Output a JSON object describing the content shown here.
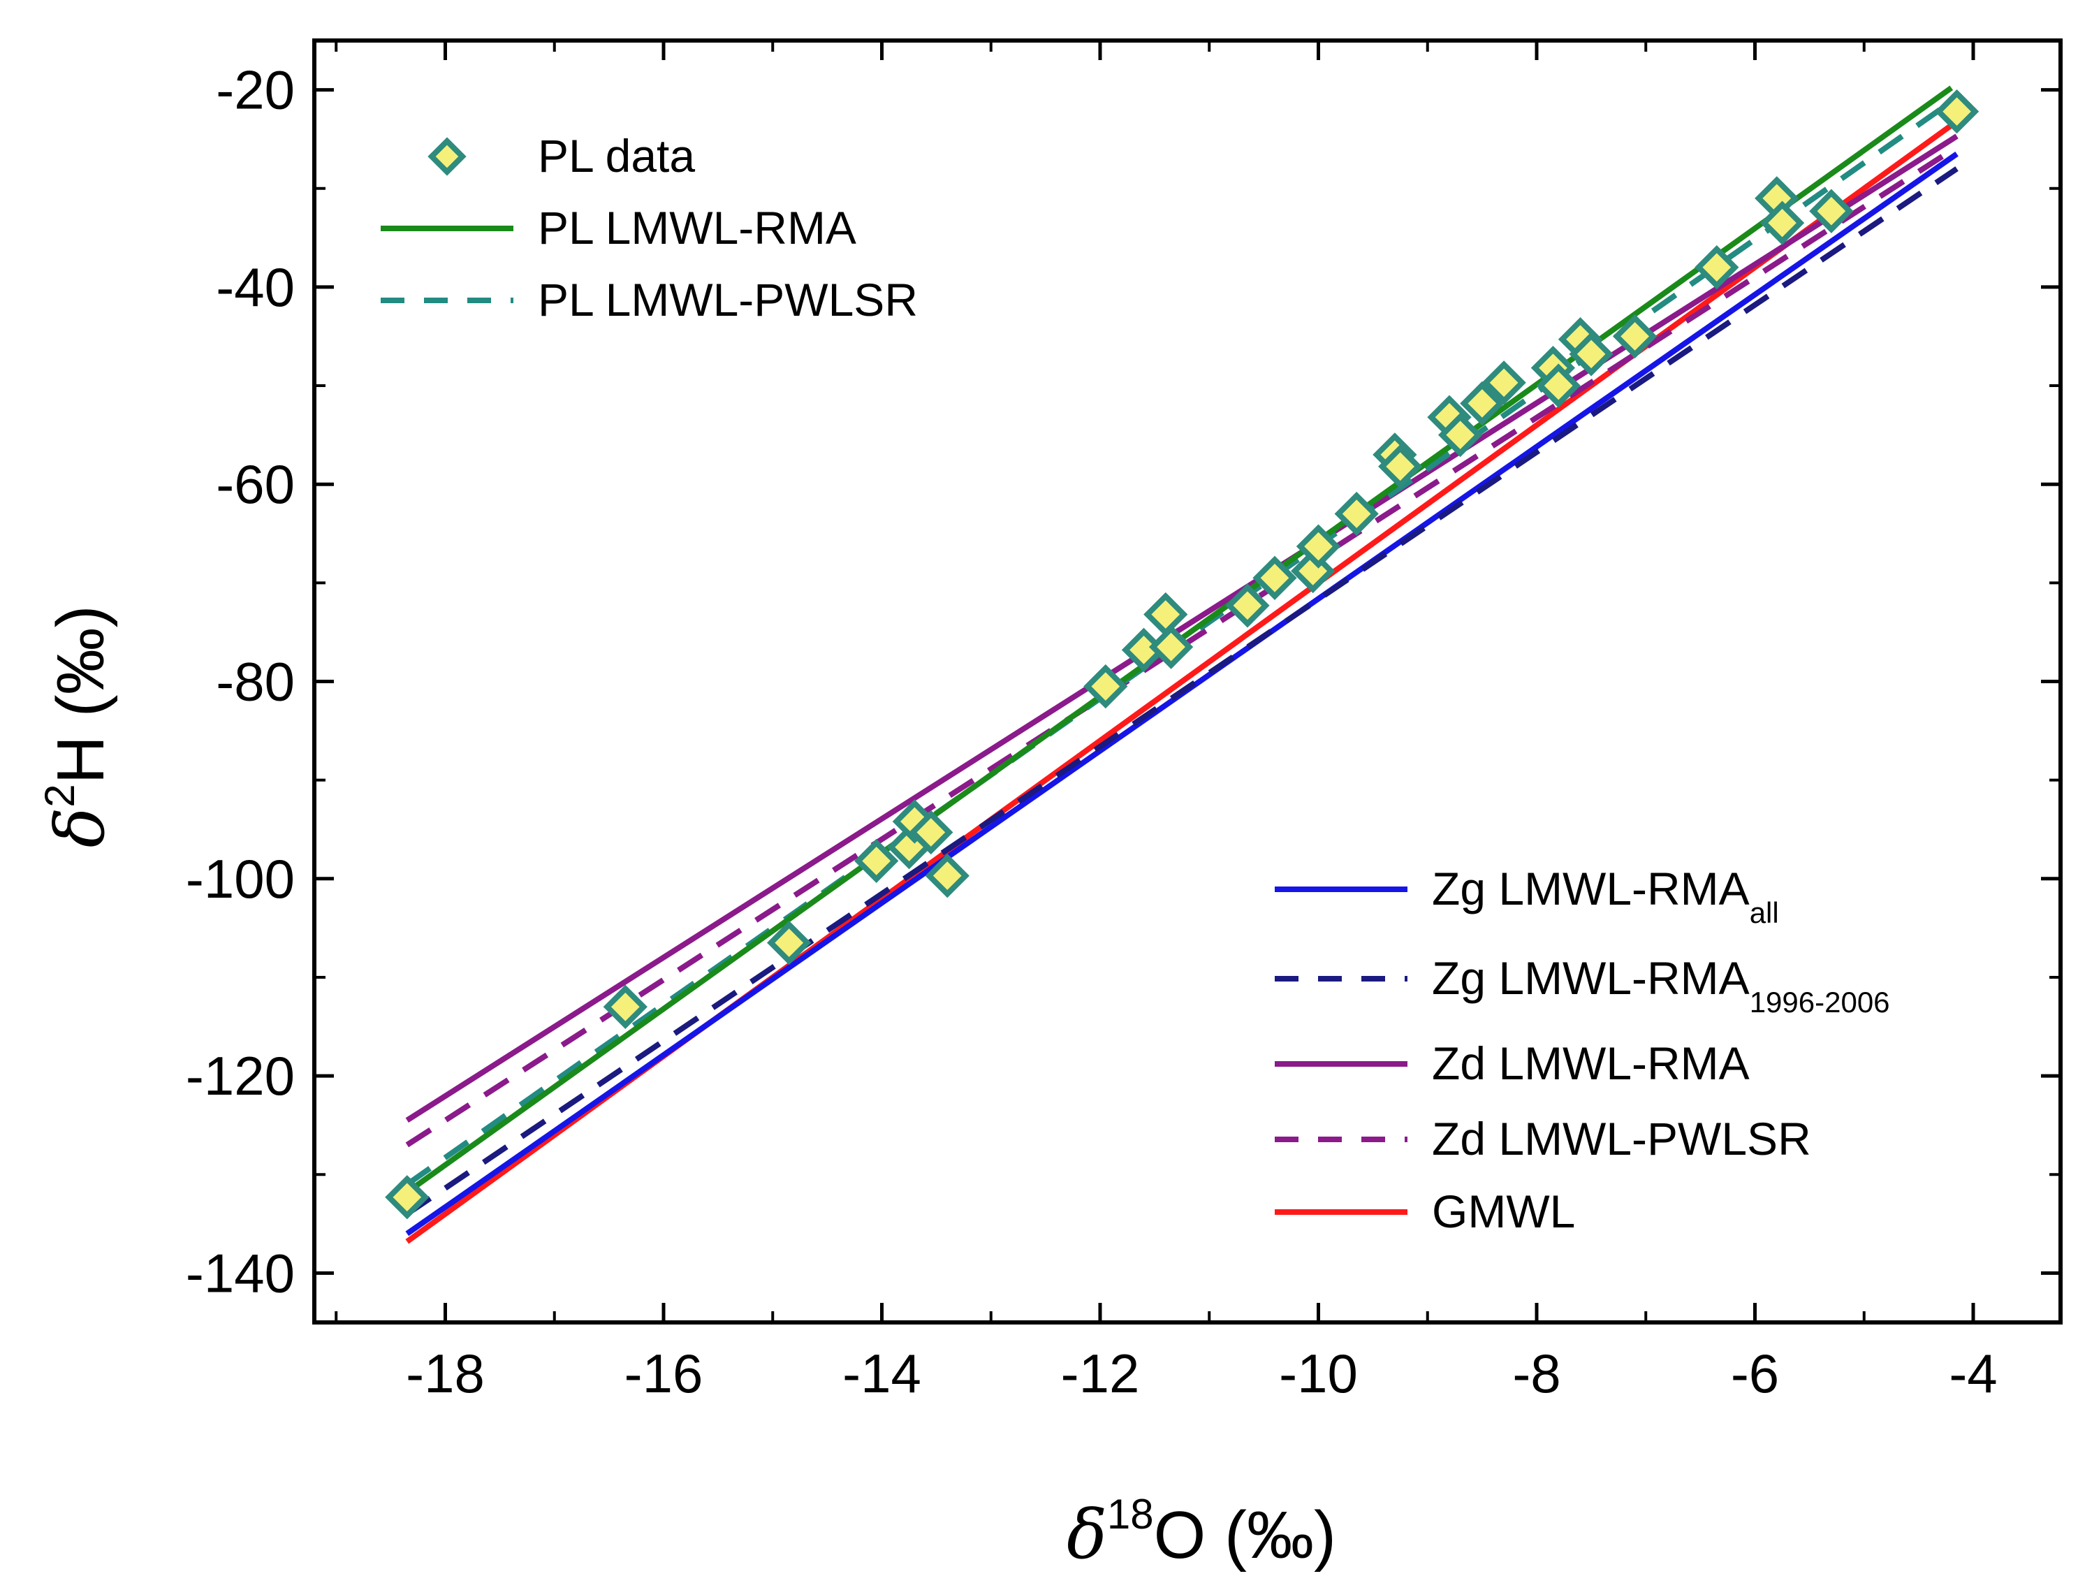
{
  "chart_data": {
    "type": "scatter",
    "title": "",
    "xlabel": {
      "symbol": "δ",
      "sup": "18",
      "text": "O (‰)"
    },
    "ylabel": {
      "symbol": "δ",
      "sup": "2",
      "text": "H (‰)"
    },
    "xlim": [
      -19.2,
      -3.2
    ],
    "ylim": [
      -145,
      -15
    ],
    "xticks": [
      -18,
      -16,
      -14,
      -12,
      -10,
      -8,
      -6,
      -4
    ],
    "yticks": [
      -20,
      -40,
      -60,
      -80,
      -100,
      -120,
      -140
    ],
    "xticks_minor": [
      -19,
      -17,
      -15,
      -13,
      -11,
      -9,
      -7,
      -5
    ],
    "yticks_minor": [
      -30,
      -50,
      -70,
      -90,
      -110,
      -130
    ],
    "grid": false,
    "colors": {
      "pl_data_fill": "#f5f07a",
      "pl_data_edge": "#2e8b7d",
      "pl_rma": "#1a8a1a",
      "pl_pwlsr": "#228b82",
      "zg_all": "#1515e8",
      "zg_1996": "#1a1a80",
      "zd_rma": "#8b1a8b",
      "zd_pwlsr": "#8b1a8b",
      "gmwl": "#ff1a1a"
    },
    "points": [
      [
        -18.35,
        -132.3
      ],
      [
        -16.35,
        -113.0
      ],
      [
        -14.85,
        -106.5
      ],
      [
        -14.05,
        -98.2
      ],
      [
        -13.75,
        -96.8
      ],
      [
        -13.7,
        -94.2
      ],
      [
        -13.55,
        -95.3
      ],
      [
        -13.4,
        -99.7
      ],
      [
        -11.95,
        -80.5
      ],
      [
        -11.6,
        -76.8
      ],
      [
        -11.4,
        -73.2
      ],
      [
        -11.35,
        -76.5
      ],
      [
        -10.65,
        -72.3
      ],
      [
        -10.4,
        -69.5
      ],
      [
        -10.05,
        -68.8
      ],
      [
        -10.0,
        -66.3
      ],
      [
        -9.65,
        -63.0
      ],
      [
        -9.3,
        -57.0
      ],
      [
        -9.25,
        -58.2
      ],
      [
        -8.8,
        -53.2
      ],
      [
        -8.7,
        -55.0
      ],
      [
        -8.5,
        -51.8
      ],
      [
        -8.3,
        -49.7
      ],
      [
        -7.85,
        -48.2
      ],
      [
        -7.8,
        -50.0
      ],
      [
        -7.6,
        -45.3
      ],
      [
        -7.5,
        -46.8
      ],
      [
        -7.1,
        -45.0
      ],
      [
        -6.35,
        -38.0
      ],
      [
        -5.8,
        -31.0
      ],
      [
        -5.75,
        -33.5
      ],
      [
        -5.3,
        -32.3
      ],
      [
        -4.15,
        -22.2
      ]
    ],
    "series": [
      {
        "name": "PL data",
        "kind": "markers",
        "color_key": "pl_data_edge"
      },
      {
        "name": "PL LMWL-RMA",
        "kind": "line",
        "dash": "solid",
        "color_key": "pl_rma",
        "x": [
          -18.35,
          -4.2
        ],
        "y": [
          -131.8,
          -19.8
        ]
      },
      {
        "name": "PL LMWL-PWLSR",
        "kind": "line",
        "dash": "dash",
        "color_key": "pl_pwlsr",
        "x": [
          -18.35,
          -4.2
        ],
        "y": [
          -131.0,
          -21.2
        ]
      },
      {
        "name": "Zg LMWL-RMA",
        "sub": "all",
        "kind": "line",
        "dash": "solid",
        "color_key": "zg_all",
        "x": [
          -18.35,
          -4.15
        ],
        "y": [
          -136.0,
          -26.5
        ]
      },
      {
        "name": "Zg LMWL-RMA",
        "sub": "1996-2006",
        "kind": "line",
        "dash": "dash",
        "color_key": "zg_1996",
        "x": [
          -18.35,
          -4.15
        ],
        "y": [
          -134.0,
          -28.0
        ]
      },
      {
        "name": "Zd LMWL-RMA",
        "kind": "line",
        "dash": "solid",
        "color_key": "zd_rma",
        "x": [
          -18.35,
          -4.15
        ],
        "y": [
          -124.5,
          -24.7
        ]
      },
      {
        "name": "Zd LMWL-PWLSR",
        "kind": "line",
        "dash": "dash",
        "color_key": "zd_pwlsr",
        "x": [
          -18.35,
          -4.15
        ],
        "y": [
          -127.0,
          -25.8
        ]
      },
      {
        "name": "GMWL",
        "kind": "line",
        "dash": "solid",
        "color_key": "gmwl",
        "x": [
          -18.35,
          -4.15
        ],
        "y": [
          -136.8,
          -23.2
        ]
      }
    ],
    "legend": [
      {
        "placement": "top-left",
        "entries": [
          0,
          1,
          2
        ]
      },
      {
        "placement": "bottom-right",
        "entries": [
          3,
          4,
          5,
          6,
          7
        ]
      }
    ]
  }
}
